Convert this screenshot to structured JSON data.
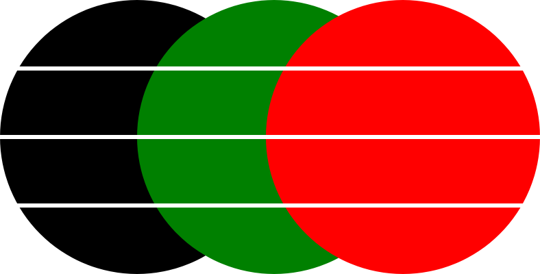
{
  "background": "#ffffff",
  "circles": [
    {
      "name": "black-circle",
      "color": "#000000"
    },
    {
      "name": "green-circle",
      "color": "#008000"
    },
    {
      "name": "red-circle",
      "color": "#ff0000"
    }
  ],
  "stripe_color": "#ffffff",
  "stripe_count": 3
}
